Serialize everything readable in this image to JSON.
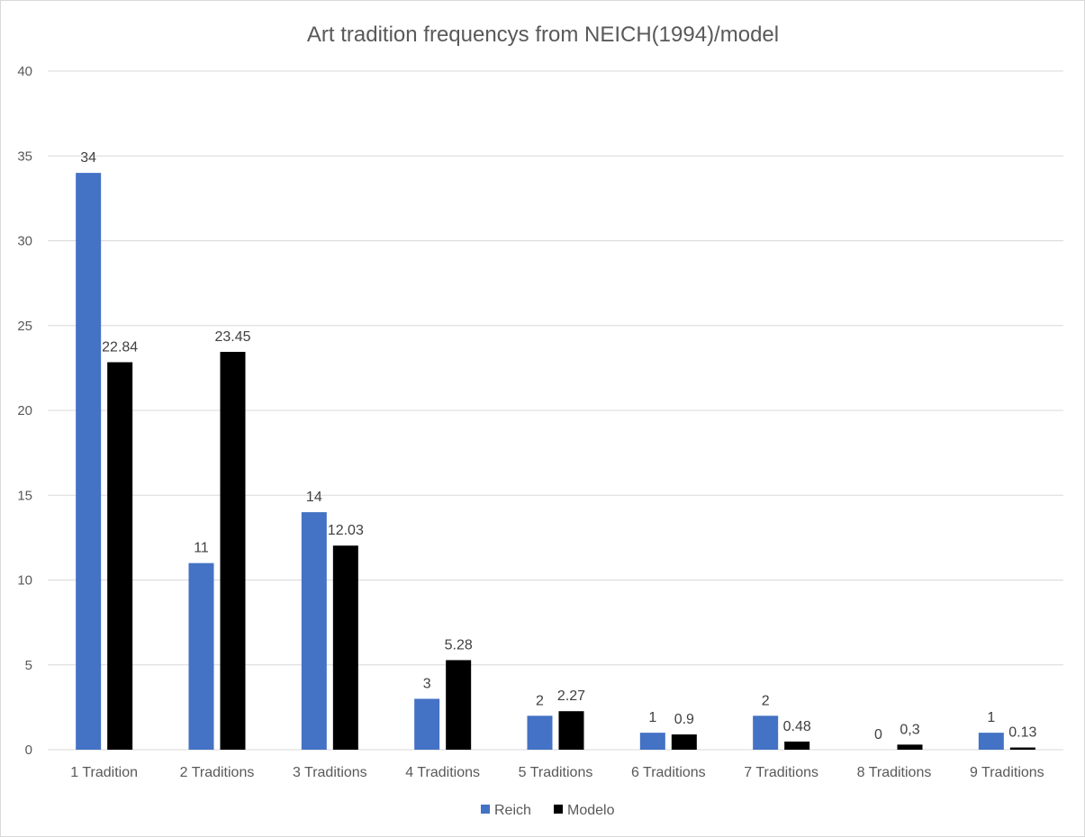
{
  "chart_data": {
    "type": "bar",
    "title": "Art tradition frequencys from NEICH(1994)/model",
    "xlabel": "",
    "ylabel": "",
    "categories": [
      "1 Tradition",
      "2 Traditions",
      "3 Traditions",
      "4 Traditions",
      "5 Traditions",
      "6 Traditions",
      "7 Traditions",
      "8 Traditions",
      "9 Traditions"
    ],
    "series": [
      {
        "name": "Reich",
        "color": "#4472C4",
        "values": [
          34,
          11,
          14,
          3,
          2,
          1,
          2,
          0,
          1
        ],
        "labels": [
          "34",
          "11",
          "14",
          "3",
          "2",
          "1",
          "2",
          "0",
          "1"
        ]
      },
      {
        "name": "Modelo",
        "color": "#000000",
        "values": [
          22.84,
          23.45,
          12.03,
          5.28,
          2.27,
          0.9,
          0.48,
          0.3,
          0.13
        ],
        "labels": [
          "22.84",
          "23.45",
          "12.03",
          "5.28",
          "2.27",
          "0.9",
          "0.48",
          "0,3",
          "0.13"
        ]
      }
    ],
    "ylim": [
      0,
      40
    ],
    "yticks": [
      0,
      5,
      10,
      15,
      20,
      25,
      30,
      35,
      40
    ],
    "grid": true,
    "legend": "bottom"
  }
}
